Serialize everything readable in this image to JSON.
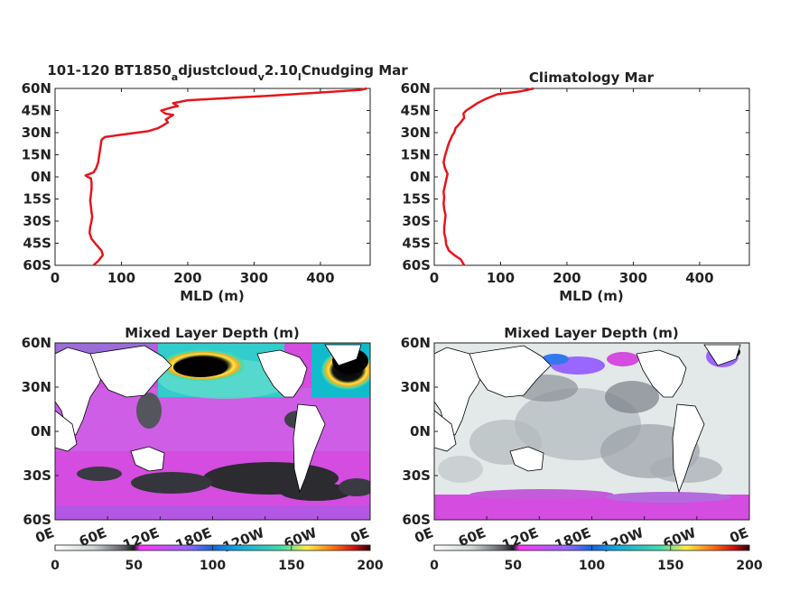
{
  "chart_data": [
    {
      "type": "line",
      "title_parts": [
        "101-120 BT1850",
        "a",
        "djustcloud",
        "v",
        "2.10",
        "l",
        "Cnudging Mar"
      ],
      "xlabel": "MLD (m)",
      "xlim": [
        0,
        475
      ],
      "ylim": [
        -60,
        60
      ],
      "xticks": [
        "0",
        "100",
        "200",
        "300",
        "400"
      ],
      "yticks": [
        "60N",
        "45N",
        "30N",
        "15N",
        "0N",
        "15S",
        "30S",
        "45S",
        "60S"
      ],
      "series": [
        {
          "color": "#e8141c",
          "x": [
            58,
            65,
            72,
            70,
            62,
            55,
            52,
            53,
            55,
            56,
            55,
            54,
            53,
            54,
            55,
            55,
            54,
            49,
            46,
            58,
            62,
            65,
            66,
            67,
            68,
            69,
            70,
            72,
            75,
            90,
            140,
            155,
            163,
            170,
            167,
            178,
            166,
            160,
            175,
            185,
            178,
            200,
            320,
            460,
            470
          ],
          "y": [
            -60,
            -57,
            -53,
            -50,
            -46,
            -42,
            -38,
            -34,
            -30,
            -27,
            -24,
            -20,
            -16,
            -12,
            -8,
            -4,
            -1,
            0,
            1,
            3,
            6,
            10,
            13,
            16,
            19,
            22,
            25,
            26,
            27,
            28,
            31,
            33,
            35,
            37,
            39,
            42,
            43,
            45,
            47,
            48,
            50,
            52,
            55,
            59,
            60
          ]
        }
      ]
    },
    {
      "type": "line",
      "title": "Climatology Mar",
      "xlabel": "MLD (m)",
      "xlim": [
        0,
        475
      ],
      "ylim": [
        -60,
        60
      ],
      "xticks": [
        "0",
        "100",
        "200",
        "300",
        "400"
      ],
      "yticks": [
        "60N",
        "45N",
        "30N",
        "15N",
        "0N",
        "15S",
        "30S",
        "45S",
        "60S"
      ],
      "series": [
        {
          "color": "#e8141c",
          "x": [
            45,
            40,
            30,
            22,
            18,
            17,
            15,
            15,
            16,
            17,
            15,
            14,
            15,
            14,
            16,
            18,
            20,
            16,
            14,
            16,
            18,
            20,
            22,
            25,
            27,
            30,
            32,
            38,
            45,
            44,
            48,
            55,
            65,
            78,
            95,
            130,
            150
          ],
          "y": [
            -60,
            -56,
            -53,
            -50,
            -46,
            -42,
            -38,
            -34,
            -30,
            -26,
            -22,
            -18,
            -14,
            -10,
            -6,
            -2,
            2,
            6,
            10,
            14,
            17,
            20,
            23,
            26,
            28,
            30,
            33,
            36,
            40,
            43,
            45,
            47,
            50,
            53,
            56,
            58,
            60
          ]
        }
      ]
    },
    {
      "type": "heatmap",
      "title": "Mixed Layer Depth (m)",
      "xticks": [
        "0E",
        "60E",
        "120E",
        "180E",
        "120W",
        "60W",
        "0E"
      ],
      "yticks": [
        "60N",
        "30N",
        "0N",
        "30S",
        "60S"
      ],
      "colorbar": {
        "ticks": [
          "0",
          "50",
          "100",
          "150",
          "200"
        ],
        "range": [
          0,
          200
        ]
      }
    },
    {
      "type": "heatmap",
      "title": "Mixed Layer Depth (m)",
      "xticks": [
        "0E",
        "60E",
        "120E",
        "180E",
        "120W",
        "60W",
        "0E"
      ],
      "yticks": [
        "60N",
        "30N",
        "0N",
        "30S",
        "60S"
      ],
      "colorbar": {
        "ticks": [
          "0",
          "50",
          "100",
          "150",
          "200"
        ],
        "range": [
          0,
          200
        ]
      }
    }
  ]
}
